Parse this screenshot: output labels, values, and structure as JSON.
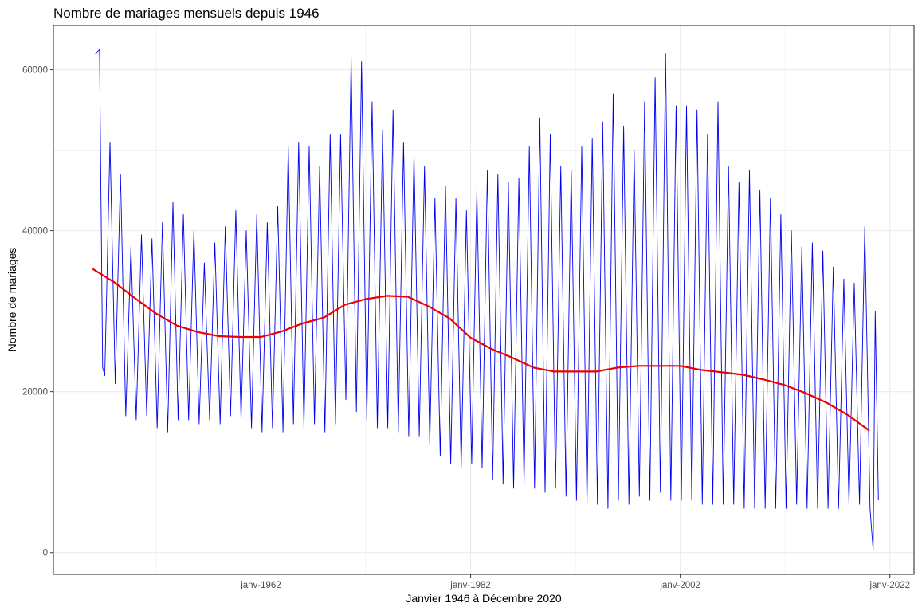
{
  "chart_data": {
    "type": "line",
    "title": "Nombre de mariages mensuels depuis 1946",
    "xlabel": "Janvier 1946 à Décembre 2020",
    "ylabel": "Nombre de mariages",
    "x_ticks": [
      {
        "year": 1962,
        "label": "janv-1962"
      },
      {
        "year": 1982,
        "label": "janv-1982"
      },
      {
        "year": 2002,
        "label": "janv-2002"
      },
      {
        "year": 2022,
        "label": "janv-2022"
      }
    ],
    "x_minor_years": [
      1952,
      1972,
      1992,
      2012
    ],
    "y_ticks": [
      0,
      20000,
      40000,
      60000
    ],
    "xlim": [
      1942.2,
      2024.3
    ],
    "ylim": [
      -2700,
      65500
    ],
    "grid": true,
    "colors": {
      "monthly": "#0000ee",
      "trend": "#ee0000",
      "grid": "#ebebeb",
      "panel_border": "#333333"
    },
    "series": [
      {
        "kind": "monthly_peaks",
        "x": [
          1946.2,
          1946.6,
          1947.6,
          1948.6,
          1949.6,
          1950.6,
          1951.6,
          1952.6,
          1953.6,
          1954.6,
          1955.6,
          1956.6,
          1957.6,
          1958.6,
          1959.6,
          1960.6,
          1961.6,
          1962.6,
          1963.6,
          1964.6,
          1965.6,
          1966.6,
          1967.6,
          1968.6,
          1969.6,
          1970.6,
          1971.6,
          1972.6,
          1973.6,
          1974.6,
          1975.6,
          1976.6,
          1977.6,
          1978.6,
          1979.6,
          1980.6,
          1981.6,
          1982.6,
          1983.6,
          1984.6,
          1985.6,
          1986.6,
          1987.6,
          1988.6,
          1989.6,
          1990.6,
          1991.6,
          1992.6,
          1993.6,
          1994.6,
          1995.6,
          1996.6,
          1997.6,
          1998.6,
          1999.6,
          2000.6,
          2001.6,
          2002.6,
          2003.6,
          2004.6,
          2005.6,
          2006.6,
          2007.6,
          2008.6,
          2009.6,
          2010.6,
          2011.6,
          2012.6,
          2013.6,
          2014.6,
          2015.6,
          2016.6,
          2017.6,
          2018.6,
          2019.6,
          2020.6
        ],
        "y": [
          62000,
          62500,
          51000,
          47000,
          38000,
          39500,
          39000,
          41000,
          43500,
          42000,
          40000,
          36000,
          38500,
          40500,
          42500,
          40000,
          42000,
          41000,
          43000,
          50500,
          51000,
          50500,
          48000,
          52000,
          52000,
          61500,
          61000,
          56000,
          52500,
          55000,
          51000,
          49500,
          48000,
          44000,
          45500,
          44000,
          42500,
          45000,
          47500,
          47000,
          46000,
          46500,
          50500,
          54000,
          52000,
          48000,
          47500,
          50500,
          51500,
          53500,
          57000,
          53000,
          50000,
          56000,
          59000,
          62000,
          55500,
          55500,
          55000,
          52000,
          56000,
          48000,
          46000,
          47500,
          45000,
          44000,
          42000,
          40000,
          38000,
          38500,
          37500,
          35500,
          34000,
          33500,
          40500,
          30000
        ]
      },
      {
        "kind": "monthly_troughs",
        "x": [
          1946.9,
          1947.1,
          1948.1,
          1949.1,
          1950.1,
          1951.1,
          1952.1,
          1953.1,
          1954.1,
          1955.1,
          1956.1,
          1957.1,
          1958.1,
          1959.1,
          1960.1,
          1961.1,
          1962.1,
          1963.1,
          1964.1,
          1965.1,
          1966.1,
          1967.1,
          1968.1,
          1969.1,
          1970.1,
          1971.1,
          1972.1,
          1973.1,
          1974.1,
          1975.1,
          1976.1,
          1977.1,
          1978.1,
          1979.1,
          1980.1,
          1981.1,
          1982.1,
          1983.1,
          1984.1,
          1985.1,
          1986.1,
          1987.1,
          1988.1,
          1989.1,
          1990.1,
          1991.1,
          1992.1,
          1993.1,
          1994.1,
          1995.1,
          1996.1,
          1997.1,
          1998.1,
          1999.1,
          2000.1,
          2001.1,
          2002.1,
          2003.1,
          2004.1,
          2005.1,
          2006.1,
          2007.1,
          2008.1,
          2009.1,
          2010.1,
          2011.1,
          2012.1,
          2013.1,
          2014.1,
          2015.1,
          2016.1,
          2017.1,
          2018.1,
          2019.1,
          2020.1,
          2020.4,
          2020.9
        ],
        "y": [
          23000,
          22000,
          21000,
          17000,
          16500,
          17000,
          15500,
          15000,
          16500,
          16500,
          16000,
          16500,
          16000,
          17000,
          16500,
          15500,
          15000,
          15500,
          15000,
          16000,
          15500,
          16000,
          15000,
          16000,
          19000,
          17500,
          16500,
          15500,
          15500,
          15000,
          14500,
          14500,
          13500,
          12000,
          11000,
          10500,
          11000,
          10500,
          9000,
          8500,
          8000,
          8500,
          8000,
          7500,
          8000,
          7000,
          6500,
          6000,
          6000,
          5500,
          6500,
          6000,
          7000,
          6500,
          7500,
          6500,
          6500,
          6500,
          6000,
          6000,
          6000,
          6000,
          5500,
          5500,
          5500,
          5500,
          5500,
          6000,
          5500,
          5500,
          5500,
          5500,
          6000,
          6000,
          5500,
          300,
          6500
        ]
      },
      {
        "kind": "smoothed_trend",
        "x": [
          1946,
          1948,
          1950,
          1952,
          1954,
          1956,
          1958,
          1960,
          1962,
          1964,
          1966,
          1968,
          1970,
          1972,
          1974,
          1976,
          1978,
          1980,
          1982,
          1984,
          1986,
          1988,
          1990,
          1992,
          1994,
          1996,
          1998,
          2000,
          2002,
          2004,
          2006,
          2008,
          2010,
          2012,
          2014,
          2016,
          2018,
          2020
        ],
        "y": [
          35200,
          33600,
          31600,
          29700,
          28200,
          27400,
          26900,
          26800,
          26800,
          27500,
          28500,
          29200,
          30800,
          31500,
          31900,
          31800,
          30600,
          29100,
          26700,
          25300,
          24200,
          23000,
          22500,
          22500,
          22500,
          23000,
          23200,
          23200,
          23200,
          22700,
          22400,
          22100,
          21500,
          20800,
          19800,
          18600,
          17100,
          15200
        ]
      }
    ]
  }
}
